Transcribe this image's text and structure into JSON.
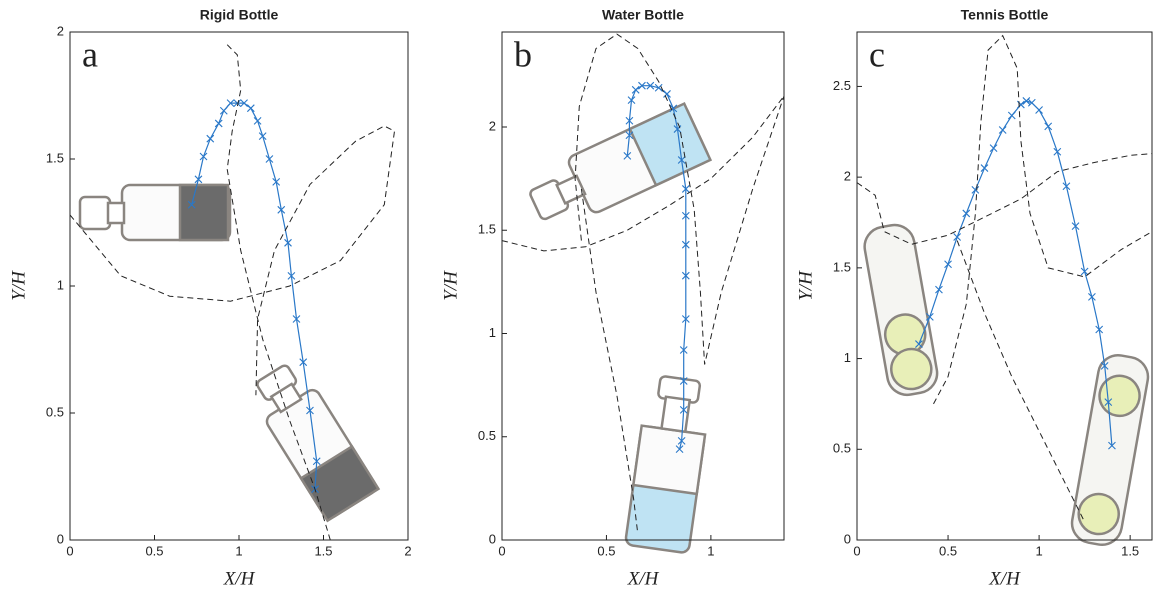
{
  "chart_data": [
    {
      "type": "line",
      "title": "Rigid Bottle",
      "annotation": "a",
      "x_label": "X/H",
      "y_label": "Y/H",
      "xlim": [
        0,
        2
      ],
      "ylim": [
        0,
        2
      ],
      "xticks": [
        0,
        0.5,
        1,
        1.5,
        2
      ],
      "yticks": [
        0,
        0.5,
        1,
        1.5,
        2
      ],
      "series": [
        {
          "color": "#2a78c8",
          "linestyle": "solid",
          "marker": "x",
          "x": [
            0.72,
            0.76,
            0.79,
            0.83,
            0.88,
            0.91,
            0.95,
            0.99,
            1.03,
            1.07,
            1.11,
            1.14,
            1.18,
            1.22,
            1.25,
            1.29,
            1.31,
            1.34,
            1.38,
            1.42,
            1.46,
            1.45
          ],
          "values": [
            1.32,
            1.42,
            1.51,
            1.58,
            1.64,
            1.69,
            1.72,
            1.72,
            1.72,
            1.7,
            1.65,
            1.59,
            1.5,
            1.41,
            1.3,
            1.17,
            1.04,
            0.87,
            0.7,
            0.51,
            0.31,
            0.2
          ]
        },
        {
          "color": "#222222",
          "linestyle": "dashed",
          "x": [
            0,
            0.3,
            0.59,
            0.95,
            1.3,
            1.6,
            1.86,
            1.92,
            1.86,
            1.69,
            1.42,
            1.21,
            1.11,
            1.1
          ],
          "values": [
            1.28,
            1.04,
            0.96,
            0.94,
            1.0,
            1.1,
            1.32,
            1.61,
            1.63,
            1.57,
            1.4,
            1.14,
            0.87,
            0.57
          ]
        },
        {
          "color": "#222222",
          "linestyle": "dashed",
          "x": [
            0.93,
            0.99,
            1.01,
            0.96,
            0.93,
            1.01,
            1.14,
            1.3,
            1.45,
            1.54
          ],
          "values": [
            1.95,
            1.91,
            1.77,
            1.61,
            1.46,
            1.14,
            0.79,
            0.47,
            0.2,
            0
          ]
        }
      ]
    },
    {
      "type": "line",
      "title": "Water Bottle",
      "annotation": "b",
      "x_label": "X/H",
      "y_label": "Y/H",
      "xlim": [
        0,
        1.35
      ],
      "ylim": [
        0,
        2.46
      ],
      "xticks": [
        0,
        0.5,
        1
      ],
      "yticks": [
        0,
        0.5,
        1,
        1.5,
        2
      ],
      "series": [
        {
          "color": "#2a78c8",
          "linestyle": "solid",
          "marker": "x",
          "x": [
            0.6,
            0.61,
            0.61,
            0.62,
            0.64,
            0.67,
            0.71,
            0.75,
            0.79,
            0.82,
            0.84,
            0.86,
            0.88,
            0.88,
            0.88,
            0.88,
            0.88,
            0.87,
            0.87,
            0.87,
            0.86,
            0.85
          ],
          "values": [
            1.86,
            1.96,
            2.03,
            2.13,
            2.18,
            2.2,
            2.2,
            2.19,
            2.16,
            2.09,
            1.99,
            1.84,
            1.7,
            1.57,
            1.43,
            1.28,
            1.07,
            0.92,
            0.77,
            0.63,
            0.48,
            0.44
          ]
        },
        {
          "color": "#222222",
          "linestyle": "dashed",
          "x": [
            0.38,
            0.35,
            0.37,
            0.45,
            0.55,
            0.65,
            0.75,
            0.85,
            0.92,
            0.95,
            0.97,
            1.05,
            1.2,
            1.35
          ],
          "values": [
            1.45,
            1.75,
            2.1,
            2.38,
            2.45,
            2.38,
            2.22,
            2.0,
            1.6,
            1.2,
            0.85,
            1.2,
            1.7,
            2.15
          ]
        },
        {
          "color": "#222222",
          "linestyle": "dashed",
          "x": [
            0,
            0.2,
            0.4,
            0.6,
            0.8,
            1.0,
            1.2,
            1.35
          ],
          "values": [
            1.45,
            1.4,
            1.42,
            1.5,
            1.62,
            1.75,
            1.95,
            2.15
          ]
        },
        {
          "color": "#222222",
          "linestyle": "dashed",
          "x": [
            0.38,
            0.45,
            0.55,
            0.63,
            0.65
          ],
          "values": [
            1.7,
            1.2,
            0.7,
            0.2,
            0.03
          ]
        }
      ]
    },
    {
      "type": "line",
      "title": "Tennis Bottle",
      "annotation": "c",
      "x_label": "X/H",
      "y_label": "Y/H",
      "xlim": [
        0,
        1.62
      ],
      "ylim": [
        0,
        2.8
      ],
      "xticks": [
        0,
        0.5,
        1,
        1.5
      ],
      "yticks": [
        0,
        0.5,
        1,
        1.5,
        2,
        2.5
      ],
      "series": [
        {
          "color": "#2a78c8",
          "linestyle": "solid",
          "marker": "x",
          "x": [
            0.34,
            0.4,
            0.45,
            0.5,
            0.55,
            0.6,
            0.65,
            0.7,
            0.75,
            0.8,
            0.85,
            0.9,
            0.93,
            0.96,
            1.0,
            1.05,
            1.1,
            1.15,
            1.2,
            1.25,
            1.29,
            1.33,
            1.36,
            1.38,
            1.4
          ],
          "values": [
            1.08,
            1.23,
            1.38,
            1.52,
            1.67,
            1.8,
            1.93,
            2.05,
            2.16,
            2.26,
            2.34,
            2.4,
            2.42,
            2.41,
            2.37,
            2.28,
            2.14,
            1.95,
            1.73,
            1.48,
            1.34,
            1.16,
            0.96,
            0.76,
            0.52
          ]
        },
        {
          "color": "#222222",
          "linestyle": "dashed",
          "x": [
            0,
            0.1,
            0.15,
            0.3,
            0.5,
            0.7,
            0.9,
            1.1,
            1.3,
            1.5,
            1.62
          ],
          "values": [
            1.97,
            1.9,
            1.7,
            1.63,
            1.68,
            1.78,
            1.88,
            2.03,
            2.08,
            2.12,
            2.13
          ]
        },
        {
          "color": "#222222",
          "linestyle": "dashed",
          "x": [
            0.55,
            0.7,
            0.85,
            1.0,
            1.15,
            1.25
          ],
          "values": [
            1.65,
            1.25,
            0.9,
            0.6,
            0.3,
            0.1
          ]
        },
        {
          "color": "#222222",
          "linestyle": "dashed",
          "x": [
            0.42,
            0.5,
            0.6,
            0.65,
            0.68,
            0.72,
            0.8,
            0.88,
            0.9,
            0.95,
            1.05,
            1.25,
            1.45,
            1.62
          ],
          "values": [
            0.75,
            0.9,
            1.3,
            1.8,
            2.3,
            2.7,
            2.78,
            2.6,
            2.2,
            1.8,
            1.5,
            1.45,
            1.6,
            1.7
          ]
        }
      ]
    }
  ]
}
